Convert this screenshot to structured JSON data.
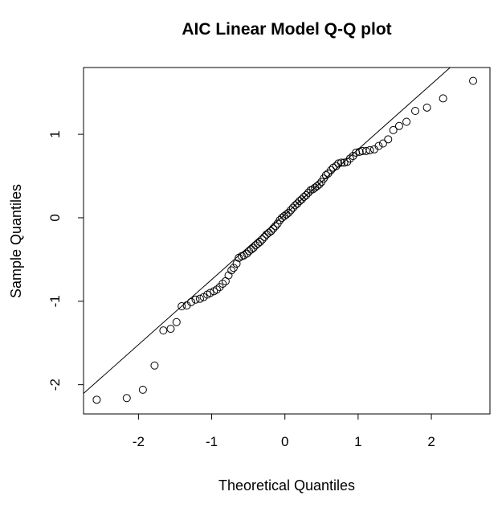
{
  "chart_data": {
    "type": "scatter",
    "title": "AIC Linear Model Q-Q plot",
    "xlabel": "Theoretical Quantiles",
    "ylabel": "Sample Quantiles",
    "xlim": [
      -2.75,
      2.8
    ],
    "ylim": [
      -2.35,
      1.8
    ],
    "x_ticks": [
      -2,
      -1,
      0,
      1,
      2
    ],
    "y_ticks": [
      -2,
      -1,
      0,
      1
    ],
    "x_tick_labels": [
      "-2",
      "-1",
      "0",
      "1",
      "2"
    ],
    "y_tick_labels": [
      "-2",
      "-1",
      "0",
      "1"
    ],
    "grid": false,
    "reference_line": {
      "intercept": 0.04,
      "slope": 0.78
    },
    "points": [
      {
        "x": -2.57,
        "y": -2.18
      },
      {
        "x": -2.16,
        "y": -2.16
      },
      {
        "x": -1.94,
        "y": -2.06
      },
      {
        "x": -1.78,
        "y": -1.77
      },
      {
        "x": -1.66,
        "y": -1.35
      },
      {
        "x": -1.56,
        "y": -1.33
      },
      {
        "x": -1.48,
        "y": -1.25
      },
      {
        "x": -1.41,
        "y": -1.06
      },
      {
        "x": -1.34,
        "y": -1.05
      },
      {
        "x": -1.28,
        "y": -1.01
      },
      {
        "x": -1.22,
        "y": -0.98
      },
      {
        "x": -1.16,
        "y": -0.97
      },
      {
        "x": -1.11,
        "y": -0.95
      },
      {
        "x": -1.06,
        "y": -0.92
      },
      {
        "x": -1.02,
        "y": -0.9
      },
      {
        "x": -0.97,
        "y": -0.88
      },
      {
        "x": -0.93,
        "y": -0.86
      },
      {
        "x": -0.89,
        "y": -0.83
      },
      {
        "x": -0.85,
        "y": -0.79
      },
      {
        "x": -0.81,
        "y": -0.76
      },
      {
        "x": -0.77,
        "y": -0.69
      },
      {
        "x": -0.73,
        "y": -0.63
      },
      {
        "x": -0.7,
        "y": -0.6
      },
      {
        "x": -0.66,
        "y": -0.55
      },
      {
        "x": -0.63,
        "y": -0.48
      },
      {
        "x": -0.59,
        "y": -0.46
      },
      {
        "x": -0.56,
        "y": -0.45
      },
      {
        "x": -0.52,
        "y": -0.43
      },
      {
        "x": -0.49,
        "y": -0.4
      },
      {
        "x": -0.46,
        "y": -0.38
      },
      {
        "x": -0.43,
        "y": -0.36
      },
      {
        "x": -0.4,
        "y": -0.33
      },
      {
        "x": -0.37,
        "y": -0.31
      },
      {
        "x": -0.34,
        "y": -0.29
      },
      {
        "x": -0.31,
        "y": -0.26
      },
      {
        "x": -0.28,
        "y": -0.23
      },
      {
        "x": -0.25,
        "y": -0.2
      },
      {
        "x": -0.22,
        "y": -0.18
      },
      {
        "x": -0.19,
        "y": -0.16
      },
      {
        "x": -0.16,
        "y": -0.13
      },
      {
        "x": -0.13,
        "y": -0.1
      },
      {
        "x": -0.1,
        "y": -0.07
      },
      {
        "x": -0.07,
        "y": -0.03
      },
      {
        "x": -0.04,
        "y": 0.0
      },
      {
        "x": -0.01,
        "y": 0.02
      },
      {
        "x": 0.02,
        "y": 0.04
      },
      {
        "x": 0.05,
        "y": 0.06
      },
      {
        "x": 0.08,
        "y": 0.09
      },
      {
        "x": 0.11,
        "y": 0.12
      },
      {
        "x": 0.14,
        "y": 0.15
      },
      {
        "x": 0.17,
        "y": 0.17
      },
      {
        "x": 0.2,
        "y": 0.2
      },
      {
        "x": 0.23,
        "y": 0.22
      },
      {
        "x": 0.26,
        "y": 0.25
      },
      {
        "x": 0.29,
        "y": 0.27
      },
      {
        "x": 0.32,
        "y": 0.3
      },
      {
        "x": 0.35,
        "y": 0.33
      },
      {
        "x": 0.38,
        "y": 0.34
      },
      {
        "x": 0.41,
        "y": 0.36
      },
      {
        "x": 0.44,
        "y": 0.38
      },
      {
        "x": 0.47,
        "y": 0.4
      },
      {
        "x": 0.5,
        "y": 0.43
      },
      {
        "x": 0.53,
        "y": 0.47
      },
      {
        "x": 0.56,
        "y": 0.51
      },
      {
        "x": 0.59,
        "y": 0.53
      },
      {
        "x": 0.63,
        "y": 0.57
      },
      {
        "x": 0.66,
        "y": 0.6
      },
      {
        "x": 0.7,
        "y": 0.62
      },
      {
        "x": 0.73,
        "y": 0.65
      },
      {
        "x": 0.77,
        "y": 0.66
      },
      {
        "x": 0.81,
        "y": 0.66
      },
      {
        "x": 0.85,
        "y": 0.67
      },
      {
        "x": 0.89,
        "y": 0.71
      },
      {
        "x": 0.93,
        "y": 0.74
      },
      {
        "x": 0.97,
        "y": 0.78
      },
      {
        "x": 1.02,
        "y": 0.79
      },
      {
        "x": 1.06,
        "y": 0.8
      },
      {
        "x": 1.11,
        "y": 0.8
      },
      {
        "x": 1.16,
        "y": 0.81
      },
      {
        "x": 1.22,
        "y": 0.82
      },
      {
        "x": 1.28,
        "y": 0.86
      },
      {
        "x": 1.34,
        "y": 0.89
      },
      {
        "x": 1.41,
        "y": 0.94
      },
      {
        "x": 1.48,
        "y": 1.05
      },
      {
        "x": 1.56,
        "y": 1.1
      },
      {
        "x": 1.66,
        "y": 1.15
      },
      {
        "x": 1.78,
        "y": 1.28
      },
      {
        "x": 1.94,
        "y": 1.32
      },
      {
        "x": 2.16,
        "y": 1.43
      },
      {
        "x": 2.57,
        "y": 1.64
      }
    ]
  }
}
